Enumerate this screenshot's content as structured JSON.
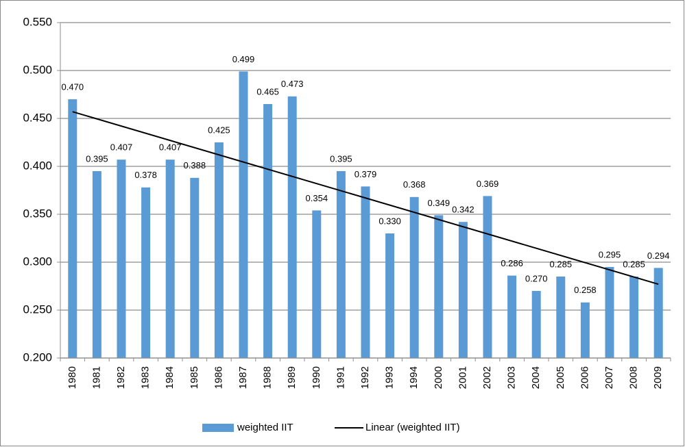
{
  "chart_data": {
    "type": "bar",
    "categories": [
      "1980",
      "1981",
      "1982",
      "1983",
      "1984",
      "1985",
      "1986",
      "1987",
      "1988",
      "1989",
      "1990",
      "1991",
      "1992",
      "1993",
      "1994",
      "2000",
      "2001",
      "2002",
      "2003",
      "2004",
      "2005",
      "2006",
      "2007",
      "2008",
      "2009"
    ],
    "series": [
      {
        "name": "weighted IIT",
        "color": "#5b9bd5",
        "values": [
          0.47,
          0.395,
          0.407,
          0.378,
          0.407,
          0.388,
          0.425,
          0.499,
          0.465,
          0.473,
          0.354,
          0.395,
          0.379,
          0.33,
          0.368,
          0.349,
          0.342,
          0.369,
          0.286,
          0.27,
          0.285,
          0.258,
          0.295,
          0.285,
          0.294
        ],
        "value_labels": [
          "0.470",
          "0.395",
          "0.407",
          "0.378",
          "0.407",
          "0.388",
          "0.425",
          "0.499",
          "0.465",
          "0.473",
          "0.354",
          "0.395",
          "0.379",
          "0.330",
          "0.368",
          "0.349",
          "0.342",
          "0.369",
          "0.286",
          "0.270",
          "0.285",
          "0.258",
          "0.295",
          "0.285",
          "0.294"
        ]
      }
    ],
    "trendline": {
      "name": "Linear (weighted IIT)",
      "color": "#000000",
      "values": [
        0.457,
        0.277
      ]
    },
    "ylim": [
      0.2,
      0.55
    ],
    "yticks": [
      {
        "value": 0.2,
        "label": "0.200"
      },
      {
        "value": 0.25,
        "label": "0.250"
      },
      {
        "value": 0.3,
        "label": "0.300"
      },
      {
        "value": 0.35,
        "label": "0.350"
      },
      {
        "value": 0.4,
        "label": "0.400"
      },
      {
        "value": 0.45,
        "label": "0.450"
      },
      {
        "value": 0.5,
        "label": "0.500"
      },
      {
        "value": 0.55,
        "label": "0.550"
      }
    ],
    "grid": true
  }
}
